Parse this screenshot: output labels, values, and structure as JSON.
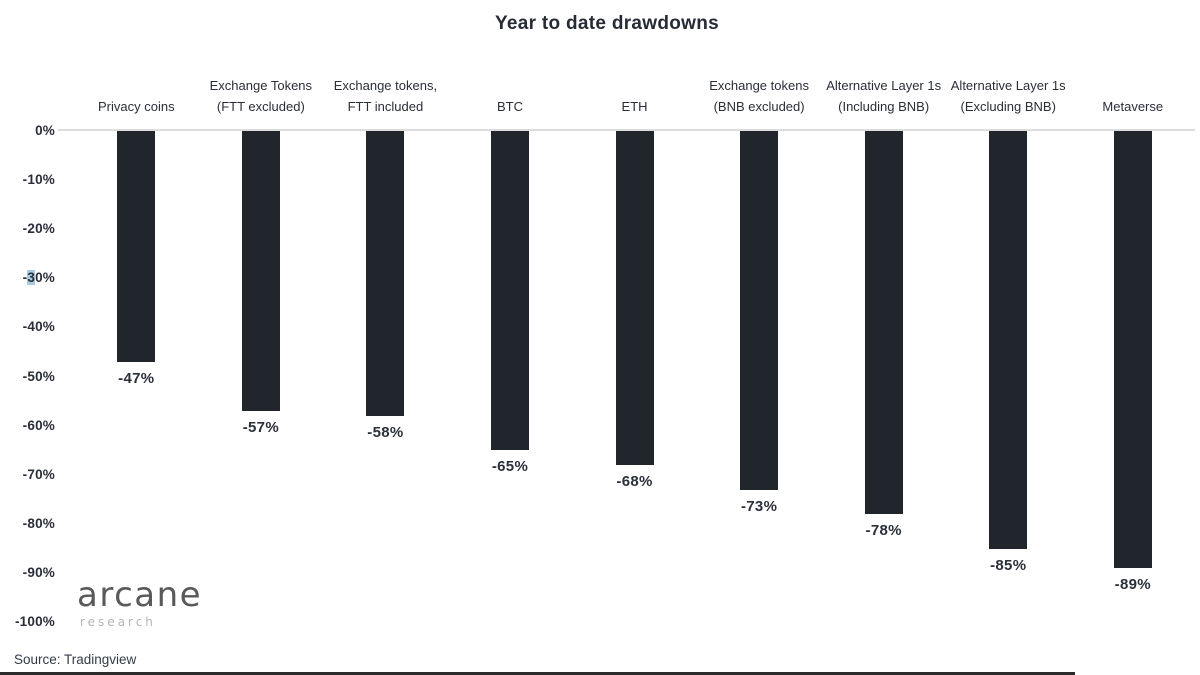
{
  "title": "Year to date drawdowns",
  "source": "Source: Tradingview",
  "logo": {
    "name": "arcane",
    "subtitle": "research"
  },
  "selection": {
    "tick": "-30%",
    "highlighted_char": "3",
    "highlight_color": "#a9cbe0"
  },
  "colors": {
    "bar": "#21262c",
    "text": "#2a2e39",
    "gridline": "#dcdcdc",
    "selection_highlight": "#a9cbe0",
    "logo_main": "#58595b",
    "logo_sub": "#b5b5b5",
    "bottom_strip": "#2b2b2b",
    "background": "#ffffff"
  },
  "chart_data": {
    "type": "bar",
    "title": "Year to date drawdowns",
    "xlabel": "",
    "ylabel": "",
    "ylim": [
      -100,
      0
    ],
    "grid": "zero-line only",
    "legend": "none",
    "bar_color": "#21262c",
    "categories": [
      "Privacy coins",
      "Exchange Tokens (FTT excluded)",
      "Exchange tokens, FTT included",
      "BTC",
      "ETH",
      "Exchange tokens (BNB excluded)",
      "Alternative Layer 1s (Including BNB)",
      "Alternative Layer 1s (Excluding BNB)",
      "Metaverse"
    ],
    "values": [
      -47,
      -57,
      -58,
      -65,
      -68,
      -73,
      -78,
      -85,
      -89
    ],
    "data_labels": [
      "-47%",
      "-57%",
      "-58%",
      "-65%",
      "-68%",
      "-73%",
      "-78%",
      "-85%",
      "-89%"
    ],
    "yticks": [
      "0%",
      "-10%",
      "-20%",
      "-30%",
      "-40%",
      "-50%",
      "-60%",
      "-70%",
      "-80%",
      "-90%",
      "-100%"
    ]
  }
}
